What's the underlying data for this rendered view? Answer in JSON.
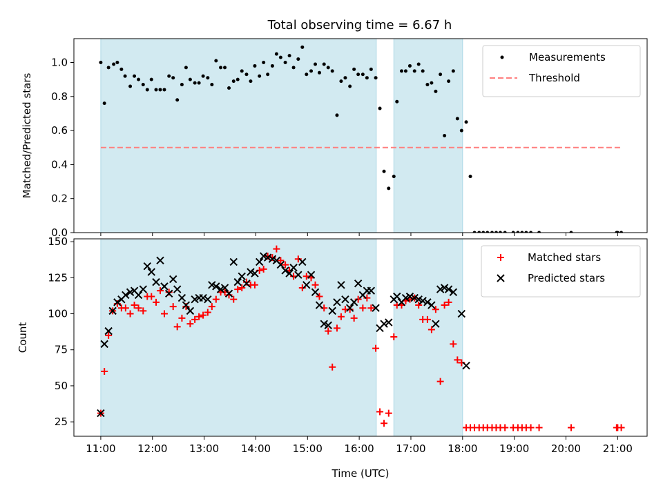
{
  "chart_data": [
    {
      "type": "scatter",
      "title": "Total observing time = 6.67 h",
      "ylabel": "Matched/Predicted stars",
      "xlabel": "",
      "xlim": [
        10.48,
        21.57
      ],
      "ylim": [
        0,
        1.14
      ],
      "yticks": [
        0.0,
        0.2,
        0.4,
        0.6,
        0.8,
        1.0
      ],
      "ytick_labels": [
        "0.0",
        "0.2",
        "0.4",
        "0.6",
        "0.8",
        "1.0"
      ],
      "legend_position": "top-right",
      "shaded_intervals": [
        [
          11.0,
          16.33
        ],
        [
          16.67,
          18.0
        ]
      ],
      "shade_color": "#add8e6",
      "series": [
        {
          "name": "Measurements",
          "kind": "scatter",
          "marker": "dot",
          "color": "#000000",
          "x": [
            11.0,
            11.07,
            11.15,
            11.25,
            11.32,
            11.4,
            11.47,
            11.57,
            11.65,
            11.73,
            11.82,
            11.9,
            11.98,
            12.07,
            12.15,
            12.23,
            12.32,
            12.4,
            12.48,
            12.57,
            12.65,
            12.73,
            12.82,
            12.9,
            12.98,
            13.07,
            13.15,
            13.23,
            13.32,
            13.4,
            13.48,
            13.57,
            13.65,
            13.73,
            13.82,
            13.9,
            13.98,
            14.07,
            14.15,
            14.23,
            14.32,
            14.4,
            14.48,
            14.57,
            14.65,
            14.73,
            14.82,
            14.9,
            14.98,
            15.07,
            15.15,
            15.23,
            15.32,
            15.4,
            15.48,
            15.57,
            15.65,
            15.73,
            15.82,
            15.9,
            15.98,
            16.07,
            16.15,
            16.23,
            16.32,
            16.4,
            16.48,
            16.57,
            16.67,
            16.73,
            16.82,
            16.9,
            16.98,
            17.07,
            17.15,
            17.23,
            17.32,
            17.4,
            17.48,
            17.57,
            17.65,
            17.73,
            17.82,
            17.9,
            17.98,
            18.07,
            18.15,
            18.23,
            18.32,
            18.4,
            18.48,
            18.57,
            18.65,
            18.73,
            18.82,
            18.98,
            19.07,
            19.15,
            19.23,
            19.32,
            19.48,
            20.1,
            20.98,
            21.0,
            21.07
          ],
          "y": [
            1.0,
            0.76,
            0.97,
            0.99,
            1.0,
            0.96,
            0.92,
            0.86,
            0.92,
            0.9,
            0.87,
            0.84,
            0.9,
            0.84,
            0.84,
            0.84,
            0.92,
            0.91,
            0.78,
            0.87,
            0.97,
            0.9,
            0.88,
            0.88,
            0.92,
            0.91,
            0.87,
            1.01,
            0.97,
            0.97,
            0.85,
            0.89,
            0.9,
            0.95,
            0.93,
            0.89,
            0.98,
            0.92,
            1.0,
            0.93,
            0.98,
            1.05,
            1.03,
            1.0,
            1.04,
            0.97,
            1.02,
            1.09,
            0.93,
            0.95,
            0.99,
            0.94,
            0.99,
            0.97,
            0.95,
            0.69,
            0.89,
            0.91,
            0.86,
            0.96,
            0.93,
            0.93,
            0.91,
            0.96,
            0.91,
            0.73,
            0.36,
            0.26,
            0.33,
            0.77,
            0.95,
            0.95,
            0.98,
            0.95,
            0.99,
            0.95,
            0.87,
            0.88,
            0.83,
            0.93,
            0.57,
            0.89,
            0.95,
            0.67,
            0.6,
            0.65,
            0.33,
            0.0,
            0.0,
            0.0,
            0.0,
            0.0,
            0.0,
            0.0,
            0.0,
            0.0,
            0.0,
            0.0,
            0.0,
            0.0,
            0.0,
            0.0,
            0.0,
            0.0,
            0.0
          ]
        },
        {
          "name": "Threshold",
          "kind": "hline",
          "style": "dashed",
          "color": "#ff7f7f",
          "y": 0.5,
          "x_range": [
            11.0,
            21.1
          ]
        }
      ]
    },
    {
      "type": "scatter",
      "title": "",
      "xlabel": "Time (UTC)",
      "ylabel": "Count",
      "xlim": [
        10.48,
        21.57
      ],
      "ylim": [
        15,
        152
      ],
      "xticks": [
        11,
        12,
        13,
        14,
        15,
        16,
        17,
        18,
        19,
        20,
        21
      ],
      "xtick_labels": [
        "11:00",
        "12:00",
        "13:00",
        "14:00",
        "15:00",
        "16:00",
        "17:00",
        "18:00",
        "19:00",
        "20:00",
        "21:00"
      ],
      "yticks": [
        25,
        50,
        75,
        100,
        125,
        150
      ],
      "ytick_labels": [
        "25",
        "50",
        "75",
        "100",
        "125",
        "150"
      ],
      "legend_position": "top-right",
      "shaded_intervals": [
        [
          11.0,
          16.33
        ],
        [
          16.67,
          18.0
        ]
      ],
      "shade_color": "#add8e6",
      "series": [
        {
          "name": "Matched stars",
          "kind": "scatter",
          "marker": "plus",
          "color": "#ff0000",
          "x": [
            11.0,
            11.07,
            11.15,
            11.23,
            11.32,
            11.4,
            11.48,
            11.57,
            11.65,
            11.73,
            11.82,
            11.9,
            11.98,
            12.07,
            12.15,
            12.23,
            12.32,
            12.4,
            12.48,
            12.57,
            12.65,
            12.73,
            12.82,
            12.9,
            12.98,
            13.07,
            13.15,
            13.23,
            13.32,
            13.4,
            13.48,
            13.57,
            13.65,
            13.73,
            13.82,
            13.9,
            13.98,
            14.07,
            14.15,
            14.23,
            14.32,
            14.4,
            14.48,
            14.57,
            14.65,
            14.73,
            14.82,
            14.9,
            14.98,
            15.07,
            15.15,
            15.23,
            15.32,
            15.4,
            15.48,
            15.57,
            15.65,
            15.73,
            15.82,
            15.9,
            15.98,
            16.07,
            16.15,
            16.23,
            16.32,
            16.4,
            16.48,
            16.57,
            16.67,
            16.73,
            16.82,
            16.9,
            16.98,
            17.07,
            17.15,
            17.23,
            17.32,
            17.4,
            17.48,
            17.57,
            17.65,
            17.73,
            17.82,
            17.9,
            17.98,
            18.07,
            18.15,
            18.23,
            18.32,
            18.4,
            18.48,
            18.57,
            18.65,
            18.73,
            18.82,
            18.98,
            19.07,
            19.15,
            19.23,
            19.32,
            19.48,
            20.1,
            20.98,
            21.0,
            21.07
          ],
          "y": [
            31,
            60,
            85,
            102,
            107,
            104,
            104,
            100,
            106,
            104,
            102,
            112,
            112,
            108,
            116,
            100,
            115,
            105,
            91,
            97,
            105,
            93,
            96,
            98,
            99,
            101,
            105,
            110,
            115,
            115,
            113,
            110,
            117,
            118,
            122,
            120,
            120,
            130,
            131,
            140,
            139,
            145,
            137,
            134,
            130,
            126,
            138,
            118,
            126,
            125,
            120,
            112,
            104,
            88,
            63,
            90,
            98,
            103,
            103,
            97,
            110,
            104,
            111,
            104,
            76,
            32,
            24,
            31,
            84,
            106,
            106,
            109,
            110,
            111,
            106,
            96,
            96,
            89,
            103,
            53,
            106,
            108,
            79,
            68,
            66,
            21,
            21,
            21,
            21,
            21,
            21,
            21,
            21,
            21,
            21,
            21,
            21,
            21,
            21,
            21,
            21,
            21,
            21,
            21,
            21
          ]
        },
        {
          "name": "Predicted stars",
          "kind": "scatter",
          "marker": "x",
          "color": "#000000",
          "x": [
            11.0,
            11.07,
            11.15,
            11.23,
            11.32,
            11.4,
            11.48,
            11.57,
            11.65,
            11.73,
            11.82,
            11.9,
            11.98,
            12.07,
            12.15,
            12.23,
            12.32,
            12.4,
            12.48,
            12.57,
            12.65,
            12.73,
            12.82,
            12.9,
            12.98,
            13.07,
            13.15,
            13.23,
            13.32,
            13.4,
            13.48,
            13.57,
            13.65,
            13.73,
            13.82,
            13.9,
            13.98,
            14.07,
            14.15,
            14.23,
            14.32,
            14.4,
            14.48,
            14.57,
            14.65,
            14.73,
            14.82,
            14.9,
            14.98,
            15.07,
            15.15,
            15.23,
            15.32,
            15.4,
            15.48,
            15.57,
            15.65,
            15.73,
            15.82,
            15.9,
            15.98,
            16.07,
            16.15,
            16.23,
            16.32,
            16.4,
            16.48,
            16.57,
            16.67,
            16.73,
            16.82,
            16.9,
            16.98,
            17.07,
            17.15,
            17.23,
            17.32,
            17.4,
            17.48,
            17.57,
            17.65,
            17.73,
            17.82,
            17.98,
            18.07
          ],
          "y": [
            31,
            79,
            88,
            102,
            108,
            110,
            113,
            115,
            116,
            113,
            117,
            133,
            129,
            122,
            137,
            119,
            114,
            124,
            117,
            111,
            106,
            102,
            110,
            111,
            111,
            110,
            120,
            119,
            117,
            118,
            114,
            136,
            122,
            126,
            121,
            129,
            128,
            136,
            140,
            139,
            138,
            137,
            134,
            130,
            128,
            132,
            127,
            136,
            120,
            127,
            115,
            106,
            93,
            92,
            102,
            108,
            120,
            110,
            104,
            108,
            121,
            113,
            116,
            116,
            104,
            90,
            93,
            94,
            110,
            112,
            108,
            111,
            112,
            111,
            110,
            109,
            108,
            106,
            93,
            117,
            118,
            117,
            115,
            100,
            64
          ]
        }
      ]
    }
  ]
}
